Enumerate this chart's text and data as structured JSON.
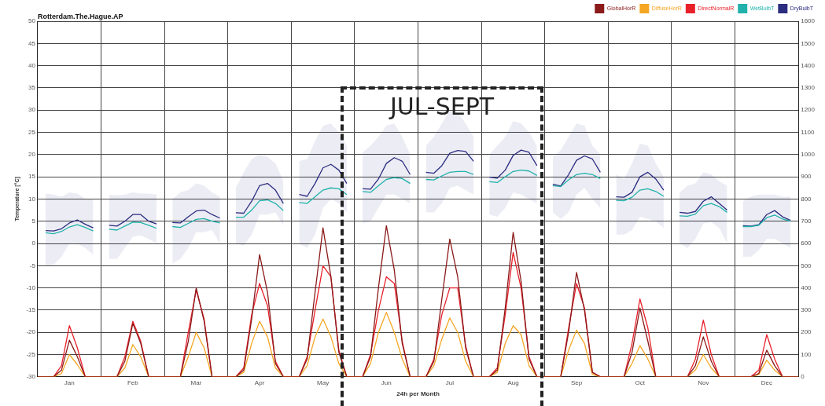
{
  "chart_data": {
    "type": "line",
    "title": "Rotterdam.The.Hague.AP",
    "xlabel": "24h per Month",
    "ylabel": "Temperature [°C]",
    "annotations": [
      "JUL-SEPT"
    ],
    "categories": [
      null,
      null,
      null,
      null,
      "Jan",
      null,
      null,
      null,
      null,
      null,
      null,
      null,
      "Feb",
      null,
      null,
      null,
      null,
      null,
      null,
      null,
      "Mar",
      null,
      null,
      null,
      null,
      null,
      null,
      null,
      "Apr",
      null,
      null,
      null,
      null,
      null,
      null,
      null,
      "May",
      null,
      null,
      null,
      null,
      null,
      null,
      null,
      "Jun",
      null,
      null,
      null,
      null,
      null,
      null,
      null,
      "Jul",
      null,
      null,
      null,
      null,
      null,
      null,
      null,
      "Aug",
      null,
      null,
      null,
      null,
      null,
      null,
      null,
      "Sep",
      null,
      null,
      null,
      null,
      null,
      null,
      null,
      "Oct",
      null,
      null,
      null,
      null,
      null,
      null,
      null,
      "Nov",
      null,
      null,
      null,
      null,
      null,
      null,
      null,
      "Dec",
      null,
      null,
      null,
      null
    ],
    "ylim": [
      -30,
      50
    ],
    "yticks": [
      -30,
      -25,
      -20,
      -15,
      -10,
      -5,
      0,
      5,
      10,
      15,
      20,
      25,
      30,
      35,
      40,
      45,
      50
    ],
    "y2lim": [
      0,
      1600
    ],
    "y2ticks": [
      0,
      100,
      200,
      300,
      400,
      500,
      600,
      700,
      800,
      900,
      1000,
      1100,
      1200,
      1300,
      1400,
      1500,
      1600
    ],
    "grid": true,
    "legend": "top right",
    "marker": "none",
    "series": [
      {
        "name": "GlobalHorR",
        "color": "#8b1a1a",
        "axis": "y2",
        "values": [
          0,
          0,
          0,
          30,
          165,
          90,
          0,
          0,
          0,
          0,
          0,
          70,
          240,
          150,
          0,
          0,
          0,
          0,
          0,
          160,
          400,
          250,
          0,
          0,
          0,
          0,
          30,
          260,
          550,
          380,
          60,
          0,
          0,
          0,
          80,
          380,
          670,
          450,
          110,
          0,
          0,
          0,
          90,
          400,
          680,
          480,
          150,
          0,
          0,
          0,
          70,
          350,
          620,
          450,
          130,
          0,
          0,
          0,
          30,
          310,
          650,
          430,
          80,
          0,
          0,
          0,
          0,
          200,
          470,
          300,
          20,
          0,
          0,
          0,
          0,
          110,
          310,
          160,
          0,
          0,
          0,
          0,
          0,
          50,
          180,
          70,
          0,
          0,
          0,
          0,
          0,
          15,
          120,
          50,
          0,
          0,
          0
        ]
      },
      {
        "name": "DiffuseHorR",
        "color": "#f5a623",
        "axis": "y2",
        "values": [
          0,
          0,
          0,
          15,
          100,
          55,
          0,
          0,
          0,
          0,
          0,
          40,
          145,
          90,
          0,
          0,
          0,
          0,
          0,
          90,
          200,
          130,
          0,
          0,
          0,
          0,
          20,
          150,
          250,
          180,
          40,
          0,
          0,
          0,
          50,
          180,
          260,
          180,
          60,
          0,
          0,
          0,
          60,
          200,
          290,
          200,
          80,
          0,
          0,
          0,
          50,
          170,
          265,
          200,
          70,
          0,
          0,
          0,
          20,
          150,
          230,
          190,
          50,
          0,
          0,
          0,
          0,
          120,
          210,
          150,
          10,
          0,
          0,
          0,
          0,
          60,
          140,
          80,
          0,
          0,
          0,
          0,
          0,
          30,
          100,
          40,
          0,
          0,
          0,
          0,
          0,
          10,
          75,
          30,
          0,
          0,
          0
        ]
      },
      {
        "name": "DirectNormalR",
        "color": "#e8202a",
        "axis": "y2",
        "values": [
          0,
          0,
          0,
          50,
          230,
          130,
          0,
          0,
          0,
          0,
          0,
          90,
          250,
          160,
          0,
          0,
          0,
          0,
          0,
          200,
          390,
          260,
          0,
          0,
          0,
          0,
          40,
          280,
          420,
          320,
          70,
          0,
          0,
          0,
          90,
          300,
          500,
          450,
          120,
          0,
          0,
          0,
          100,
          300,
          450,
          420,
          160,
          0,
          0,
          0,
          80,
          280,
          400,
          400,
          140,
          0,
          0,
          0,
          40,
          280,
          560,
          400,
          90,
          0,
          0,
          0,
          0,
          220,
          420,
          310,
          20,
          0,
          0,
          0,
          0,
          150,
          350,
          220,
          0,
          0,
          0,
          0,
          0,
          80,
          255,
          100,
          0,
          0,
          0,
          0,
          0,
          30,
          190,
          80,
          0,
          0,
          0
        ]
      },
      {
        "name": "WetBulbT",
        "color": "#20b2aa",
        "values": [
          null,
          2.4,
          2.2,
          2.7,
          3.7,
          4.2,
          3.6,
          2.8,
          null,
          3.2,
          3.0,
          3.9,
          4.8,
          4.7,
          4.1,
          3.4,
          null,
          3.8,
          3.6,
          4.5,
          5.4,
          5.6,
          5.0,
          4.6,
          null,
          5.9,
          5.9,
          7.5,
          9.6,
          9.8,
          9.0,
          7.4,
          null,
          9.2,
          9.0,
          10.5,
          12.0,
          12.5,
          12.3,
          11.0,
          null,
          11.7,
          11.5,
          13.0,
          14.4,
          14.8,
          14.6,
          13.5,
          null,
          14.4,
          14.3,
          15.2,
          16.0,
          16.2,
          16.2,
          15.5,
          null,
          13.9,
          13.7,
          15.0,
          16.2,
          16.5,
          16.3,
          15.3,
          null,
          13.0,
          12.8,
          14.3,
          15.5,
          15.8,
          15.5,
          14.6,
          null,
          9.7,
          9.6,
          10.4,
          12.0,
          12.3,
          11.7,
          10.6,
          null,
          6.2,
          6.1,
          6.6,
          8.5,
          9.0,
          8.3,
          7.0,
          null,
          3.8,
          3.8,
          4.1,
          5.8,
          6.4,
          5.5,
          5.0,
          null
        ]
      },
      {
        "name": "DryBulbT",
        "color": "#2b2d80",
        "values": [
          null,
          2.9,
          2.8,
          3.3,
          4.6,
          5.3,
          4.3,
          3.5,
          null,
          4.1,
          3.9,
          5.0,
          6.5,
          6.5,
          5.0,
          4.4,
          null,
          4.7,
          4.6,
          6.0,
          7.3,
          7.5,
          6.5,
          5.7,
          null,
          6.9,
          6.8,
          9.5,
          13.0,
          13.5,
          12.0,
          9.0,
          null,
          11.0,
          10.6,
          13.5,
          17.0,
          17.8,
          16.5,
          13.5,
          null,
          12.3,
          12.2,
          14.5,
          18.0,
          19.3,
          18.5,
          15.5,
          null,
          16.0,
          15.8,
          17.5,
          20.3,
          20.9,
          20.7,
          18.5,
          null,
          14.9,
          14.7,
          16.5,
          19.8,
          21.0,
          20.5,
          17.5,
          null,
          13.3,
          12.9,
          15.5,
          18.7,
          19.7,
          19.0,
          16.0,
          null,
          10.5,
          10.4,
          11.5,
          15.0,
          16.0,
          14.5,
          12.0,
          null,
          7.0,
          6.8,
          7.2,
          9.5,
          10.5,
          9.0,
          7.5,
          null,
          4.0,
          3.9,
          4.2,
          6.5,
          7.4,
          6.0,
          5.2,
          null
        ],
        "lower": [
          null,
          -5,
          -4.8,
          -3,
          0,
          0,
          -1,
          -2.5,
          null,
          -3.5,
          -3.5,
          -1,
          1.5,
          1.8,
          1,
          0,
          null,
          -4.5,
          -3.5,
          -1,
          2.5,
          2.5,
          3,
          0,
          null,
          0,
          -0.5,
          2,
          6.5,
          6.5,
          7,
          4,
          null,
          0,
          -1,
          2,
          8,
          10,
          9,
          7,
          null,
          4.5,
          5,
          8,
          11,
          11,
          10,
          9,
          null,
          7,
          7,
          9,
          12.5,
          13,
          12,
          11,
          null,
          6.5,
          6,
          8,
          11.5,
          11,
          10,
          9,
          null,
          7,
          5.5,
          7,
          11,
          12.5,
          10,
          8,
          null,
          2,
          2,
          3,
          6,
          5.5,
          5,
          3.5,
          null,
          0,
          -1,
          1,
          4.5,
          4.8,
          3.5,
          0,
          null,
          -3,
          -3,
          -1.5,
          1,
          1,
          0,
          -1,
          null
        ],
        "upper": [
          null,
          11.2,
          11,
          10.5,
          11.5,
          11.2,
          10,
          10,
          null,
          11,
          10.8,
          11,
          11.5,
          11.2,
          11.2,
          11,
          null,
          10,
          11.5,
          12,
          13.5,
          13,
          11.5,
          10.5,
          null,
          12.5,
          16,
          19,
          20,
          19.5,
          18,
          14,
          null,
          18.5,
          19,
          23,
          26.5,
          27,
          25,
          22,
          null,
          20.5,
          22,
          24,
          26.5,
          27,
          24,
          20,
          null,
          22,
          24,
          27,
          30,
          29.5,
          27,
          24,
          null,
          20,
          22,
          24,
          27.5,
          27,
          25,
          22,
          null,
          19.5,
          21,
          24,
          27,
          26.5,
          22,
          20,
          null,
          15.5,
          14.5,
          18,
          22.5,
          22,
          18,
          15,
          null,
          11.5,
          13,
          13.5,
          16,
          15.5,
          14,
          13,
          null,
          9.5,
          10.5,
          11,
          11,
          11,
          10.5,
          10.5,
          null
        ]
      }
    ]
  }
}
